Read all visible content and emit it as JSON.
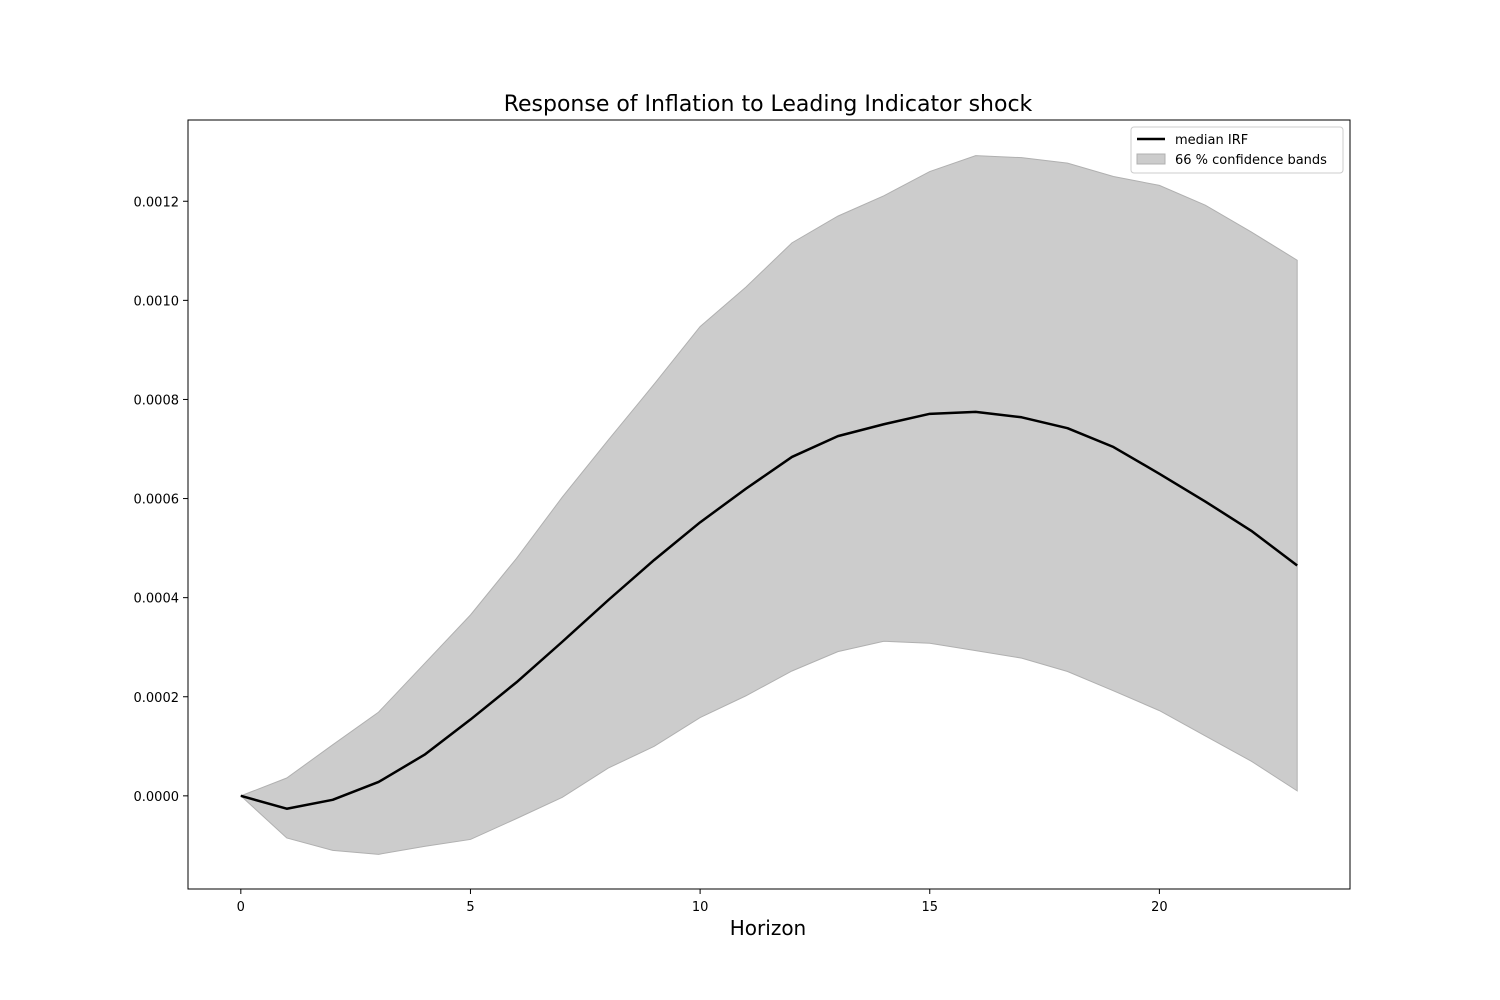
{
  "chart_data": {
    "type": "line",
    "title": "Response of Inflation to Leading Indicator shock",
    "xlabel": "Horizon",
    "ylabel": "",
    "xlim": [
      -1.15,
      24.15
    ],
    "ylim": [
      -0.000188,
      0.001364
    ],
    "x_ticks": [
      0,
      5,
      10,
      15,
      20
    ],
    "x_tick_labels": [
      "0",
      "5",
      "10",
      "15",
      "20"
    ],
    "y_ticks": [
      0.0,
      0.0002,
      0.0004,
      0.0006,
      0.0008,
      0.001,
      0.0012
    ],
    "y_tick_labels": [
      "0.0000",
      "0.0002",
      "0.0004",
      "0.0006",
      "0.0008",
      "0.0010",
      "0.0012"
    ],
    "grid": false,
    "legend_position": "top-right",
    "x": [
      0,
      1,
      2,
      3,
      4,
      5,
      6,
      7,
      8,
      9,
      10,
      11,
      12,
      13,
      14,
      15,
      16,
      17,
      18,
      19,
      20,
      21,
      22,
      23
    ],
    "series": [
      {
        "name": "median IRF",
        "kind": "line",
        "color": "#000000",
        "values": [
          0.0,
          -2.6e-05,
          -8e-06,
          2.8e-05,
          8.3e-05,
          0.000154,
          0.000229,
          0.000311,
          0.000395,
          0.000476,
          0.000552,
          0.00062,
          0.000684,
          0.000726,
          0.00075,
          0.000771,
          0.000775,
          0.000764,
          0.000742,
          0.000704,
          0.00065,
          0.000594,
          0.000535,
          0.000465
        ]
      },
      {
        "name": "66 % confidence bands",
        "kind": "band",
        "color": "#cccccc",
        "edge_color": "#b0b0b0",
        "lower": [
          0.0,
          -8.5e-05,
          -0.00011,
          -0.000118,
          -0.000102,
          -8.8e-05,
          -4.6e-05,
          -3e-06,
          5.6e-05,
          0.0001,
          0.000158,
          0.000202,
          0.000252,
          0.000291,
          0.000312,
          0.000308,
          0.000293,
          0.000278,
          0.000251,
          0.000212,
          0.000172,
          0.000121,
          7e-05,
          1e-05
        ],
        "upper": [
          0.0,
          3.6e-05,
          0.000103,
          0.000169,
          0.000267,
          0.000365,
          0.000479,
          0.000603,
          0.000718,
          0.000831,
          0.000947,
          0.001027,
          0.001116,
          0.00117,
          0.001211,
          0.00126,
          0.001292,
          0.001288,
          0.001277,
          0.00125,
          0.001232,
          0.001192,
          0.001138,
          0.001081
        ]
      }
    ]
  }
}
